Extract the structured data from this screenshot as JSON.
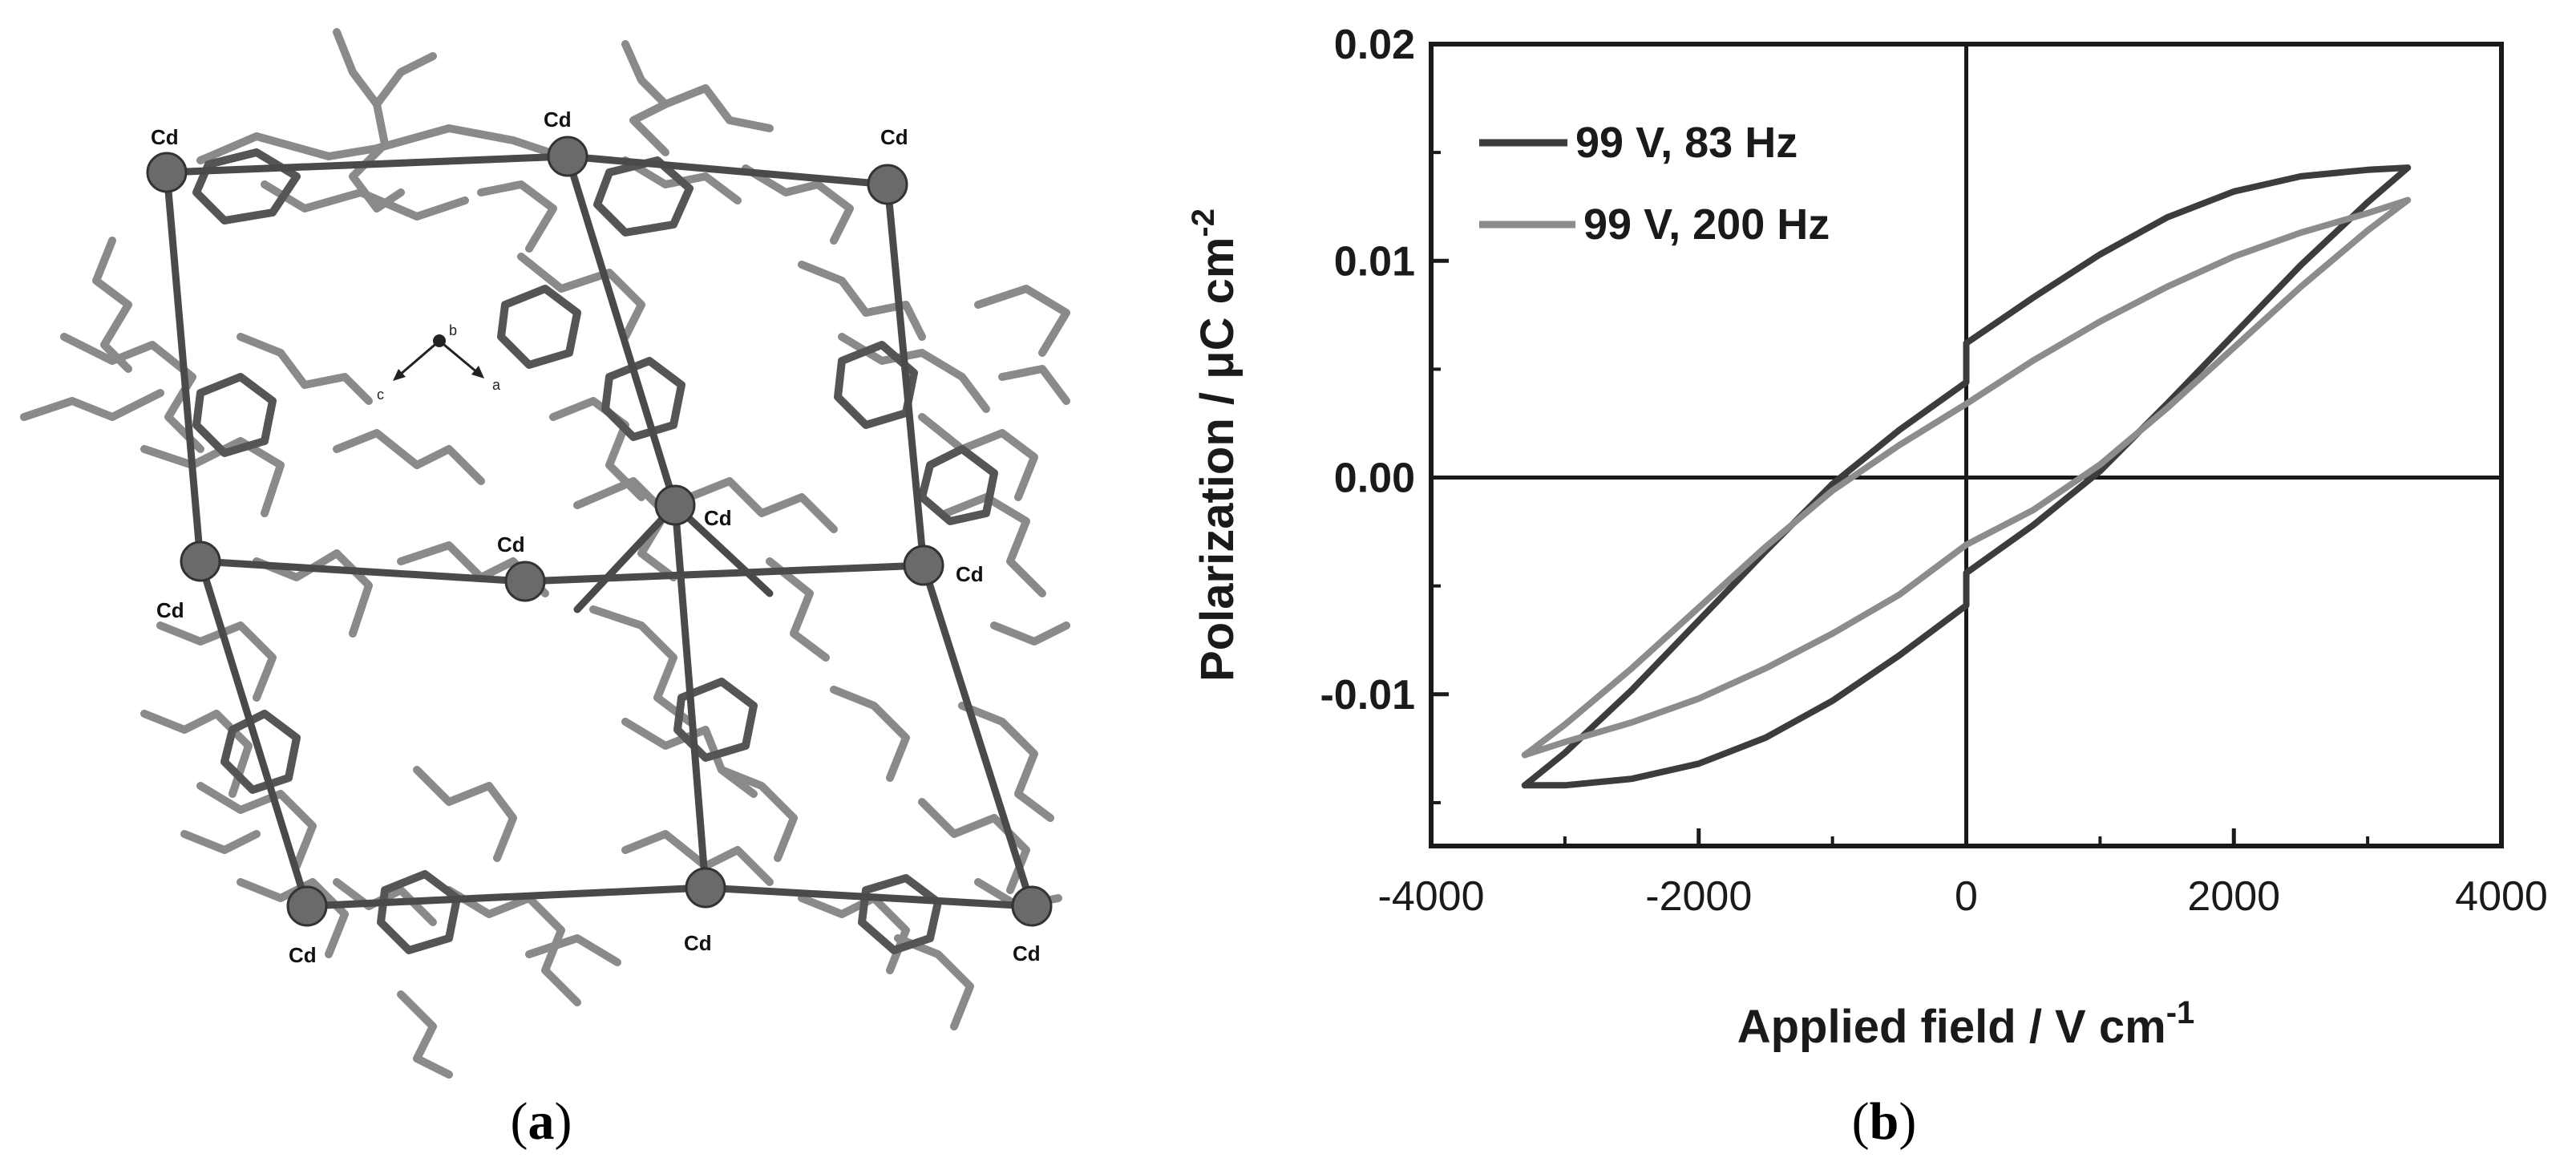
{
  "panel_a": {
    "caption_open": "(",
    "caption_letter": "a",
    "caption_close": ")",
    "cd_label": "Cd",
    "axis_a": "a",
    "axis_b": "b",
    "axis_c": "c",
    "structure_color": "#555555",
    "ligand_color": "#8a8a8a"
  },
  "panel_b": {
    "caption_open": "(",
    "caption_letter": "b",
    "caption_close": ")"
  },
  "chart_data": {
    "type": "line",
    "xlabel": "Applied field / V cm",
    "xlabel_sup": "-1",
    "ylabel": "Polarization / μC cm",
    "ylabel_sup": "-2",
    "xlim": [
      -4000,
      4000
    ],
    "ylim": [
      -0.017,
      0.02
    ],
    "xticks": [
      -4000,
      -2000,
      0,
      2000,
      4000
    ],
    "xtick_labels": [
      "-4000",
      "-2000",
      "0",
      "2000",
      "4000"
    ],
    "yticks": [
      0.02,
      0.01,
      0.0,
      -0.01
    ],
    "ytick_labels": [
      "0.02",
      "0.01",
      "0.00",
      "-0.01"
    ],
    "grid": false,
    "zero_lines": true,
    "legend_position": "top-left",
    "series": [
      {
        "name": "99 V, 83 Hz",
        "color": "#3c3c3c",
        "upper_branch": [
          [
            -3300,
            -0.0142
          ],
          [
            -3000,
            -0.0127
          ],
          [
            -2500,
            -0.0098
          ],
          [
            -2000,
            -0.0066
          ],
          [
            -1500,
            -0.0034
          ],
          [
            -1000,
            -0.0003
          ],
          [
            -500,
            0.0022
          ],
          [
            0,
            0.0044
          ],
          [
            0,
            0.0062
          ],
          [
            500,
            0.0083
          ],
          [
            1000,
            0.0103
          ],
          [
            1500,
            0.012
          ],
          [
            2000,
            0.0132
          ],
          [
            2500,
            0.0139
          ],
          [
            3000,
            0.0142
          ],
          [
            3300,
            0.0143
          ]
        ],
        "lower_branch": [
          [
            3300,
            0.0143
          ],
          [
            3000,
            0.0127
          ],
          [
            2500,
            0.0098
          ],
          [
            2000,
            0.0066
          ],
          [
            1500,
            0.0034
          ],
          [
            1000,
            0.0003
          ],
          [
            500,
            -0.0022
          ],
          [
            0,
            -0.0044
          ],
          [
            0,
            -0.0059
          ],
          [
            -500,
            -0.0082
          ],
          [
            -1000,
            -0.0103
          ],
          [
            -1500,
            -0.012
          ],
          [
            -2000,
            -0.0132
          ],
          [
            -2500,
            -0.0139
          ],
          [
            -3000,
            -0.0142
          ],
          [
            -3300,
            -0.0142
          ]
        ]
      },
      {
        "name": "99 V, 200 Hz",
        "color": "#8c8c8c",
        "upper_branch": [
          [
            -3300,
            -0.0128
          ],
          [
            -3000,
            -0.0114
          ],
          [
            -2500,
            -0.0088
          ],
          [
            -2000,
            -0.006
          ],
          [
            -1500,
            -0.0032
          ],
          [
            -1000,
            -0.0006
          ],
          [
            -500,
            0.0015
          ],
          [
            0,
            0.0034
          ],
          [
            500,
            0.0054
          ],
          [
            1000,
            0.0072
          ],
          [
            1500,
            0.0088
          ],
          [
            2000,
            0.0102
          ],
          [
            2500,
            0.0113
          ],
          [
            3000,
            0.0122
          ],
          [
            3300,
            0.0128
          ]
        ],
        "lower_branch": [
          [
            3300,
            0.0128
          ],
          [
            3000,
            0.0114
          ],
          [
            2500,
            0.0088
          ],
          [
            2000,
            0.006
          ],
          [
            1500,
            0.0032
          ],
          [
            1000,
            0.0006
          ],
          [
            500,
            -0.0015
          ],
          [
            0,
            -0.0031
          ],
          [
            -500,
            -0.0054
          ],
          [
            -1000,
            -0.0072
          ],
          [
            -1500,
            -0.0088
          ],
          [
            -2000,
            -0.0102
          ],
          [
            -2500,
            -0.0113
          ],
          [
            -3000,
            -0.0122
          ],
          [
            -3300,
            -0.0128
          ]
        ]
      }
    ]
  }
}
